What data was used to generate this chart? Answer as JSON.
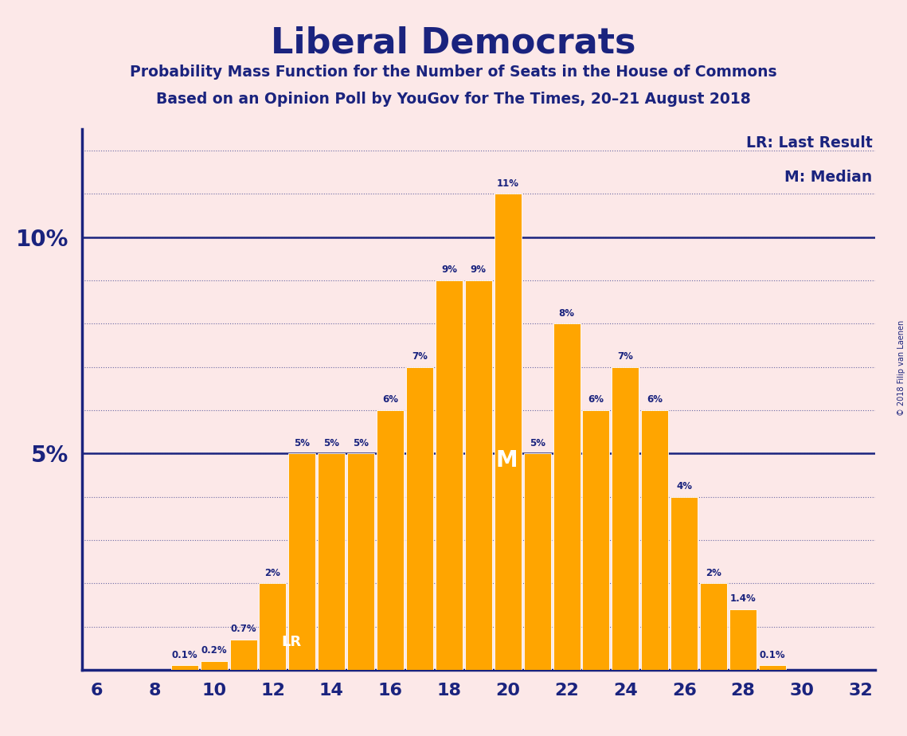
{
  "title": "Liberal Democrats",
  "subtitle1": "Probability Mass Function for the Number of Seats in the House of Commons",
  "subtitle2": "Based on an Opinion Poll by YouGov for The Times, 20–21 August 2018",
  "background_color": "#fce8e8",
  "bar_color": "#FFA500",
  "text_color": "#1a237e",
  "seats": [
    6,
    7,
    8,
    9,
    10,
    11,
    12,
    13,
    14,
    15,
    16,
    17,
    18,
    19,
    20,
    21,
    22,
    23,
    24,
    25,
    26,
    27,
    28,
    29,
    30,
    31,
    32
  ],
  "probs": [
    0.0,
    0.0,
    0.0,
    0.1,
    0.2,
    0.7,
    2.0,
    5.0,
    5.0,
    5.0,
    6.0,
    7.0,
    9.0,
    9.0,
    11.0,
    5.0,
    8.0,
    6.0,
    7.0,
    6.0,
    4.0,
    2.0,
    1.4,
    0.1,
    0.0,
    0.0,
    0.0
  ],
  "lr_seat": 12,
  "median_seat": 20,
  "copyright": "© 2018 Filip van Laenen",
  "legend_lr": "LR: Last Result",
  "legend_m": "M: Median",
  "xlim": [
    5.5,
    32.5
  ],
  "ylim": [
    0,
    12.5
  ],
  "xticks": [
    6,
    8,
    10,
    12,
    14,
    16,
    18,
    20,
    22,
    24,
    26,
    28,
    30,
    32
  ],
  "bar_width": 0.92
}
